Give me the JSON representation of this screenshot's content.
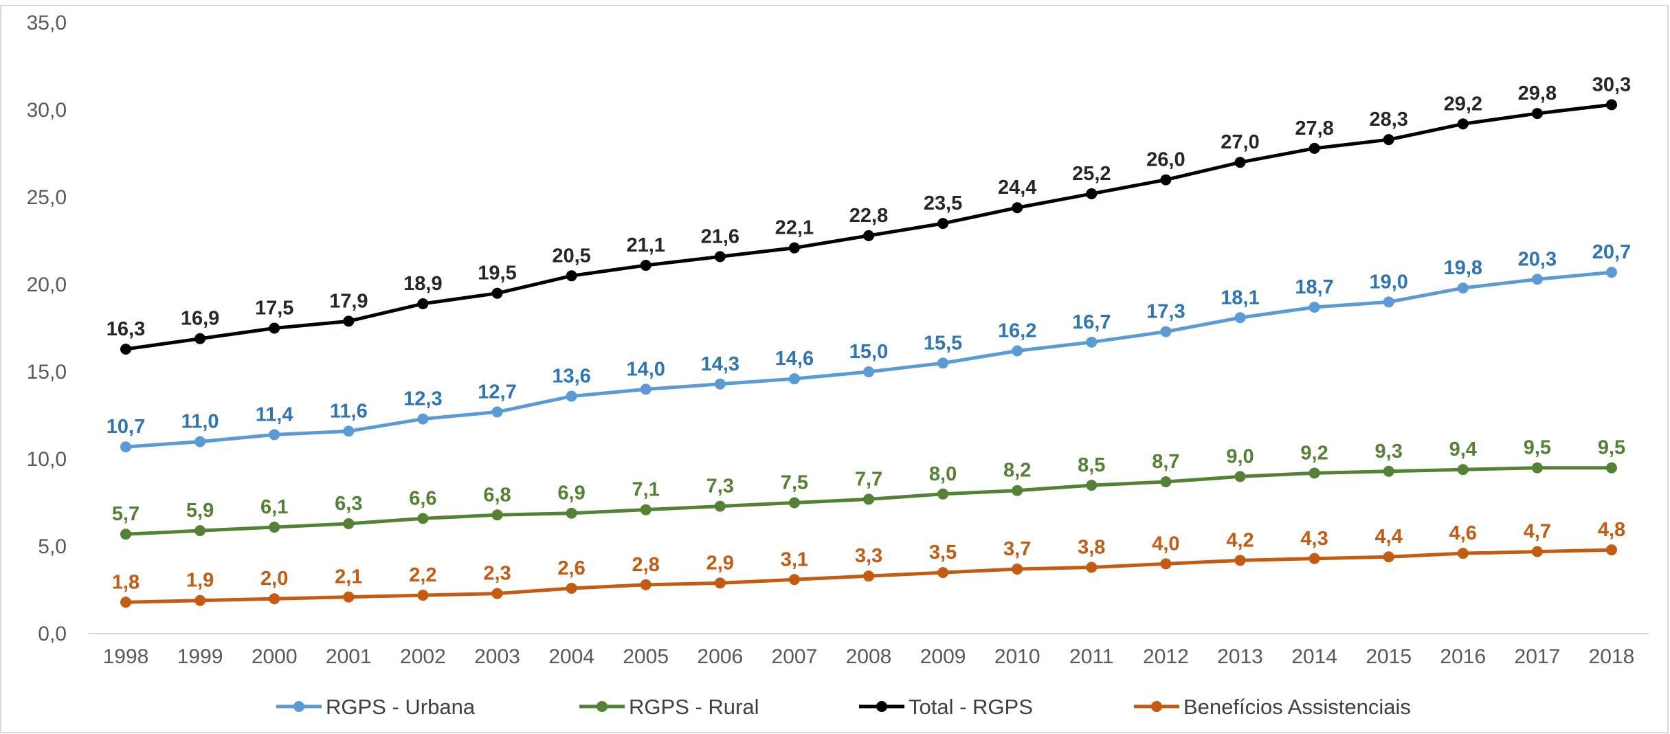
{
  "chart_data": {
    "type": "line",
    "title": "",
    "xlabel": "",
    "ylabel": "",
    "ylim": [
      0,
      35
    ],
    "y_ticks": [
      "0,0",
      "5,0",
      "10,0",
      "15,0",
      "20,0",
      "25,0",
      "30,0",
      "35,0"
    ],
    "grid": false,
    "legend_position": "bottom",
    "categories": [
      "1998",
      "1999",
      "2000",
      "2001",
      "2002",
      "2003",
      "2004",
      "2005",
      "2006",
      "2007",
      "2008",
      "2009",
      "2010",
      "2011",
      "2012",
      "2013",
      "2014",
      "2015",
      "2016",
      "2017",
      "2018"
    ],
    "series": [
      {
        "name": "RGPS - Urbana",
        "color": "#5B9BD5",
        "label_color": "#2E75B6",
        "values": [
          10.7,
          11.0,
          11.4,
          11.6,
          12.3,
          12.7,
          13.6,
          14.0,
          14.3,
          14.6,
          15.0,
          15.5,
          16.2,
          16.7,
          17.3,
          18.1,
          18.7,
          19.0,
          19.8,
          20.3,
          20.7
        ],
        "labels": [
          "10,7",
          "11,0",
          "11,4",
          "11,6",
          "12,3",
          "12,7",
          "13,6",
          "14,0",
          "14,3",
          "14,6",
          "15,0",
          "15,5",
          "16,2",
          "16,7",
          "17,3",
          "18,1",
          "18,7",
          "19,0",
          "19,8",
          "20,3",
          "20,7"
        ]
      },
      {
        "name": "RGPS - Rural",
        "color": "#548235",
        "label_color": "#548235",
        "values": [
          5.7,
          5.9,
          6.1,
          6.3,
          6.6,
          6.8,
          6.9,
          7.1,
          7.3,
          7.5,
          7.7,
          8.0,
          8.2,
          8.5,
          8.7,
          9.0,
          9.2,
          9.3,
          9.4,
          9.5,
          9.5
        ],
        "labels": [
          "5,7",
          "5,9",
          "6,1",
          "6,3",
          "6,6",
          "6,8",
          "6,9",
          "7,1",
          "7,3",
          "7,5",
          "7,7",
          "8,0",
          "8,2",
          "8,5",
          "8,7",
          "9,0",
          "9,2",
          "9,3",
          "9,4",
          "9,5",
          "9,5"
        ]
      },
      {
        "name": "Total - RGPS",
        "color": "#000000",
        "label_color": "#262626",
        "values": [
          16.3,
          16.9,
          17.5,
          17.9,
          18.9,
          19.5,
          20.5,
          21.1,
          21.6,
          22.1,
          22.8,
          23.5,
          24.4,
          25.2,
          26.0,
          27.0,
          27.8,
          28.3,
          29.2,
          29.8,
          30.3
        ],
        "labels": [
          "16,3",
          "16,9",
          "17,5",
          "17,9",
          "18,9",
          "19,5",
          "20,5",
          "21,1",
          "21,6",
          "22,1",
          "22,8",
          "23,5",
          "24,4",
          "25,2",
          "26,0",
          "27,0",
          "27,8",
          "28,3",
          "29,2",
          "29,8",
          "30,3"
        ]
      },
      {
        "name": "Benefícios Assistenciais",
        "color": "#C55A11",
        "label_color": "#C55A11",
        "values": [
          1.8,
          1.9,
          2.0,
          2.1,
          2.2,
          2.3,
          2.6,
          2.8,
          2.9,
          3.1,
          3.3,
          3.5,
          3.7,
          3.8,
          4.0,
          4.2,
          4.3,
          4.4,
          4.6,
          4.7,
          4.8
        ],
        "labels": [
          "1,8",
          "1,9",
          "2,0",
          "2,1",
          "2,2",
          "2,3",
          "2,6",
          "2,8",
          "2,9",
          "3,1",
          "3,3",
          "3,5",
          "3,7",
          "3,8",
          "4,0",
          "4,2",
          "4,3",
          "4,4",
          "4,6",
          "4,7",
          "4,8"
        ]
      }
    ],
    "legend_order": [
      0,
      1,
      2,
      3
    ]
  }
}
